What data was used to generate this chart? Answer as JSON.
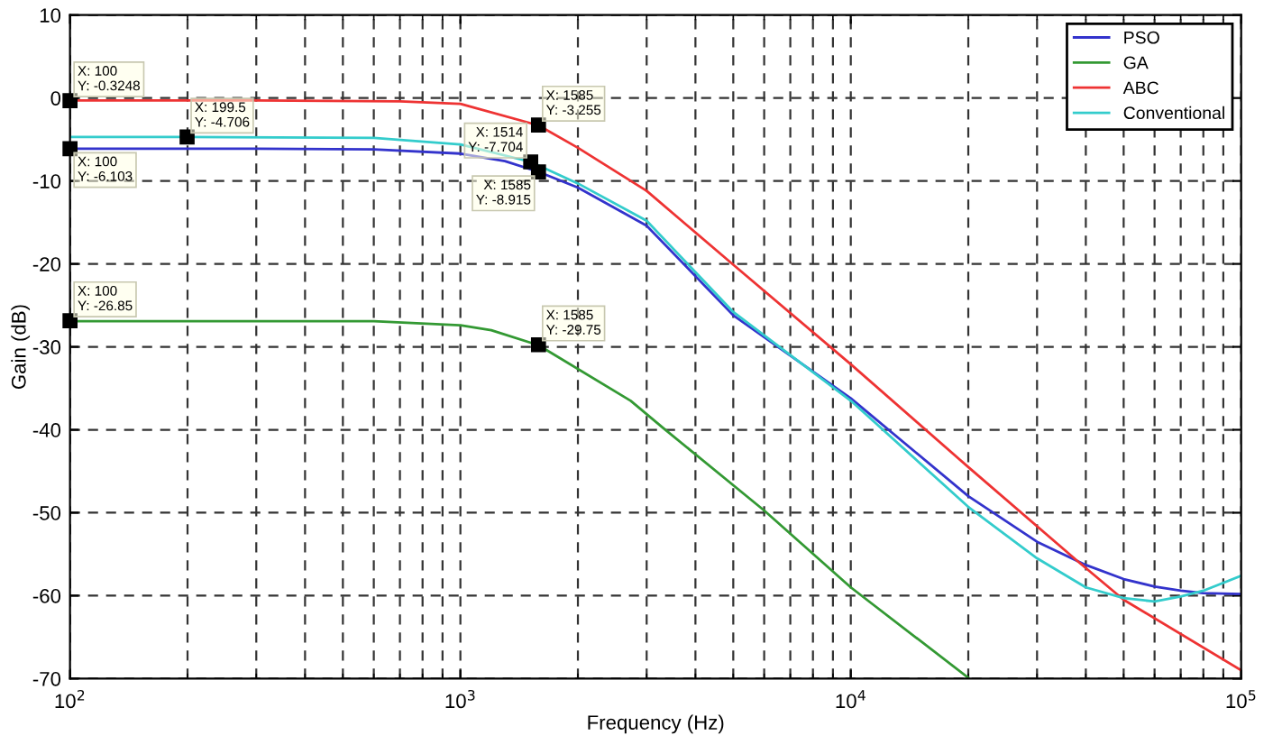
{
  "chart_data": {
    "type": "line",
    "xlabel": "Frequency (Hz)",
    "ylabel": "Gain (dB)",
    "log": "x",
    "xlim": [
      100,
      100000
    ],
    "ylim": [
      -70,
      10
    ],
    "xticks": [
      {
        "value": 100,
        "label": "10$^{2}$"
      },
      {
        "value": 1000,
        "label": "10$^{3}$"
      },
      {
        "value": 10000,
        "label": "10$^{4}$"
      },
      {
        "value": 100000,
        "label": "10$^{5}$"
      }
    ],
    "yticks": [
      -70,
      -60,
      -50,
      -40,
      -30,
      -20,
      -10,
      0,
      10
    ],
    "grid": true,
    "legend": "top right",
    "line_style": "solid",
    "marker": "none",
    "series": [
      {
        "name": "PSO",
        "color": "#3333cc",
        "x": [
          100,
          300,
          600,
          1000,
          1300,
          1585,
          2000,
          3000,
          5000,
          10000,
          20000,
          30000,
          40000,
          50000,
          60000,
          70000,
          80000,
          100000
        ],
        "values": [
          -6.1,
          -6.1,
          -6.2,
          -6.7,
          -7.6,
          -8.9,
          -10.8,
          -15.4,
          -26.2,
          -36.2,
          -48,
          -53.5,
          -56.3,
          -58,
          -58.9,
          -59.4,
          -59.7,
          -59.8
        ]
      },
      {
        "name": "GA",
        "color": "#339933",
        "x": [
          100,
          300,
          600,
          1000,
          1200,
          1585,
          2730,
          3330,
          5990,
          10000,
          20000
        ],
        "values": [
          -26.9,
          -26.9,
          -26.9,
          -27.4,
          -28,
          -29.8,
          -36.5,
          -39.9,
          -49.7,
          -59,
          -69.9
        ]
      },
      {
        "name": "ABC",
        "color": "#ee3333",
        "x": [
          100,
          300,
          700,
          1000,
          1585,
          2000,
          3000,
          5000,
          10000,
          20000,
          38000,
          50000,
          100000
        ],
        "values": [
          -0.3,
          -0.3,
          -0.4,
          -0.7,
          -3.3,
          -6,
          -11.2,
          -20.1,
          -32.1,
          -44.5,
          -55.8,
          -60.5,
          -69
        ]
      },
      {
        "name": "Conventional",
        "color": "#33cccc",
        "x": [
          100,
          199.5,
          600,
          1000,
          1514,
          2000,
          3000,
          5000,
          10000,
          20000,
          30000,
          40000,
          50000,
          60000,
          70000,
          80000,
          100000
        ],
        "values": [
          -4.7,
          -4.7,
          -4.8,
          -5.6,
          -7.7,
          -10.3,
          -14.8,
          -25.8,
          -36.5,
          -49.3,
          -55.5,
          -59,
          -60.3,
          -60.7,
          -60.1,
          -59.4,
          -57.6
        ]
      }
    ],
    "annotations": [
      {
        "text": "X: 100\nY: -0.3248",
        "x": 100,
        "y": -0.3248
      },
      {
        "text": "X: 199.5\nY: -4.706",
        "x": 199.5,
        "y": -4.706
      },
      {
        "text": "X: 100\nY: -6.103",
        "x": 100,
        "y": -6.103
      },
      {
        "text": "X: 1514\nY: -7.704",
        "x": 1514,
        "y": -7.704
      },
      {
        "text": "X: 1585\nY: -8.915",
        "x": 1585,
        "y": -8.915
      },
      {
        "text": "X: 1585\nY: -3.255",
        "x": 1585,
        "y": -3.255
      },
      {
        "text": "X: 100\nY: -26.85",
        "x": 100,
        "y": -26.85
      },
      {
        "text": "X: 1585\nY: -29.75",
        "x": 1585,
        "y": -29.75
      }
    ]
  }
}
